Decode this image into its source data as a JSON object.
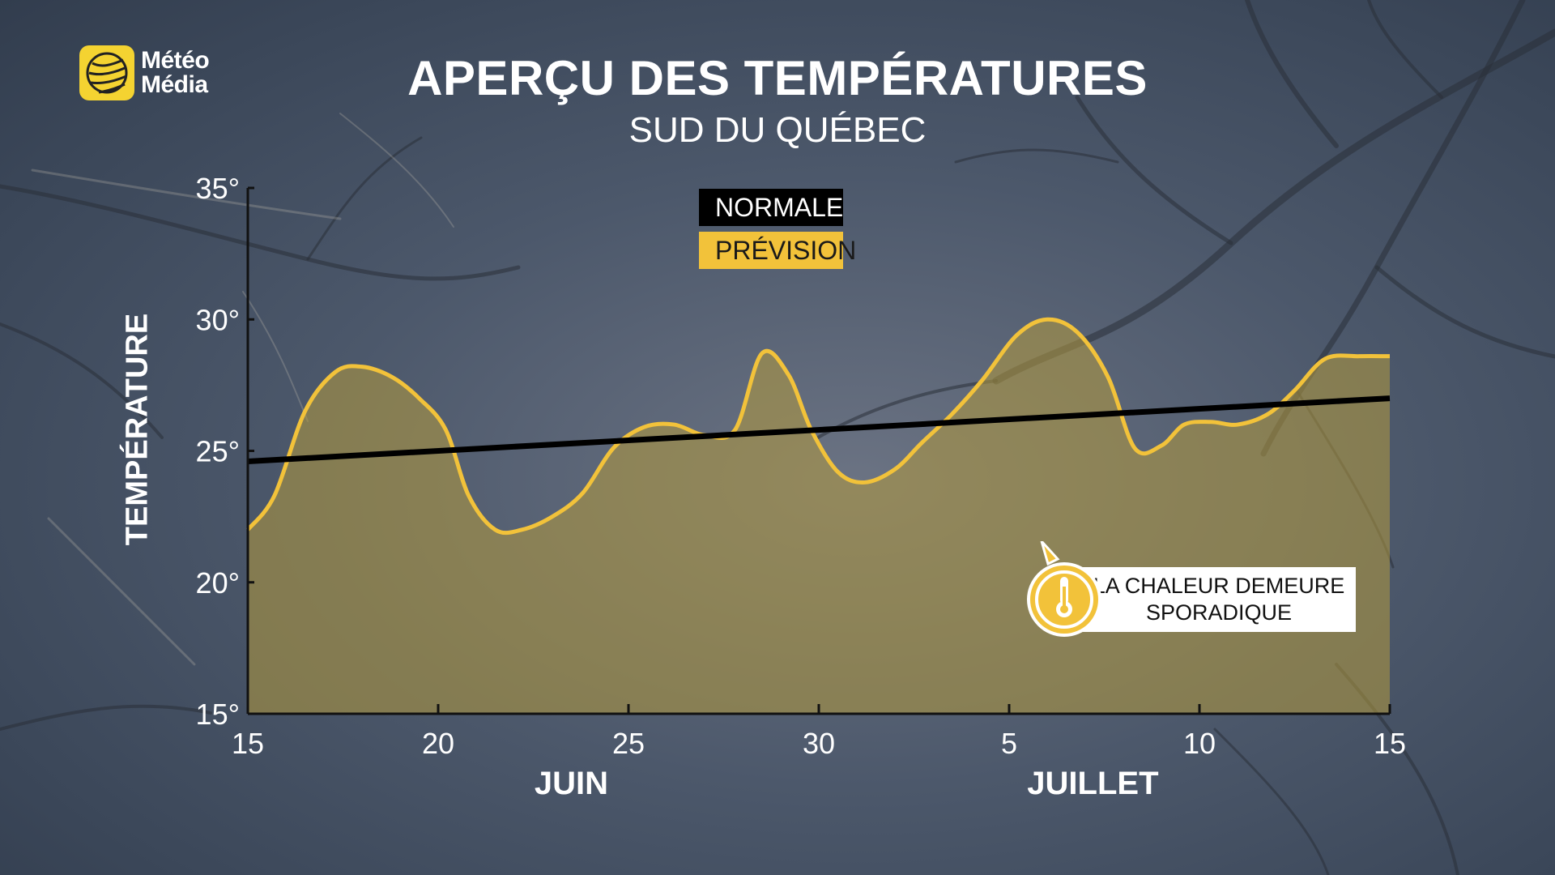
{
  "brand": {
    "line1": "Météo",
    "line2": "Média",
    "color": "#f4d331"
  },
  "header": {
    "title": "APERÇU DES TEMPÉRATURES",
    "subtitle": "SUD DU QUÉBEC"
  },
  "legend": {
    "normal": "NORMALE",
    "forecast": "PRÉVISION"
  },
  "callout": {
    "line1": "LA CHALEUR DEMEURE",
    "line2": "SPORADIQUE",
    "icon": "thermometer-icon"
  },
  "chart_data": {
    "type": "line",
    "ylabel": "TEMPÉRATURE",
    "ylim": [
      15,
      35
    ],
    "yticks": [
      15,
      20,
      25,
      30,
      35
    ],
    "ytick_labels": [
      "15°",
      "20°",
      "25°",
      "30°",
      "35°"
    ],
    "xlim": [
      0,
      30
    ],
    "xticks": [
      0,
      5,
      10,
      15,
      20,
      25,
      30
    ],
    "xtick_labels": [
      "15",
      "20",
      "25",
      "30",
      "5",
      "10",
      "15"
    ],
    "months": [
      {
        "label": "JUIN",
        "x": 8.5
      },
      {
        "label": "JUILLET",
        "x": 22.2
      }
    ],
    "series": [
      {
        "name": "PRÉVISION",
        "color": "#f2c23a",
        "fill": true,
        "x": [
          0,
          0.7,
          1.5,
          2.3,
          3.0,
          3.8,
          4.5,
          5.2,
          5.8,
          6.5,
          7.2,
          8.0,
          8.8,
          9.6,
          10.4,
          11.2,
          12.0,
          12.8,
          13.5,
          14.2,
          14.8,
          15.5,
          16.2,
          17.0,
          17.7,
          18.5,
          19.3,
          20.2,
          21.0,
          21.8,
          22.6,
          23.3,
          24.0,
          24.6,
          25.3,
          26.0,
          26.8,
          27.5,
          28.3,
          29.2,
          30.0
        ],
        "y": [
          22.0,
          23.3,
          26.5,
          28.0,
          28.2,
          27.8,
          27.0,
          25.8,
          23.3,
          22.0,
          22.0,
          22.5,
          23.4,
          25.1,
          25.9,
          26.0,
          25.6,
          25.8,
          28.7,
          27.9,
          25.8,
          24.2,
          23.8,
          24.3,
          25.3,
          26.4,
          27.7,
          29.4,
          30.0,
          29.5,
          27.8,
          25.1,
          25.2,
          26.0,
          26.1,
          26.0,
          26.4,
          27.3,
          28.5,
          28.6,
          28.6
        ]
      },
      {
        "name": "NORMALE",
        "color": "#000000",
        "fill": false,
        "x": [
          0,
          30
        ],
        "y": [
          24.6,
          27.0
        ]
      }
    ]
  }
}
